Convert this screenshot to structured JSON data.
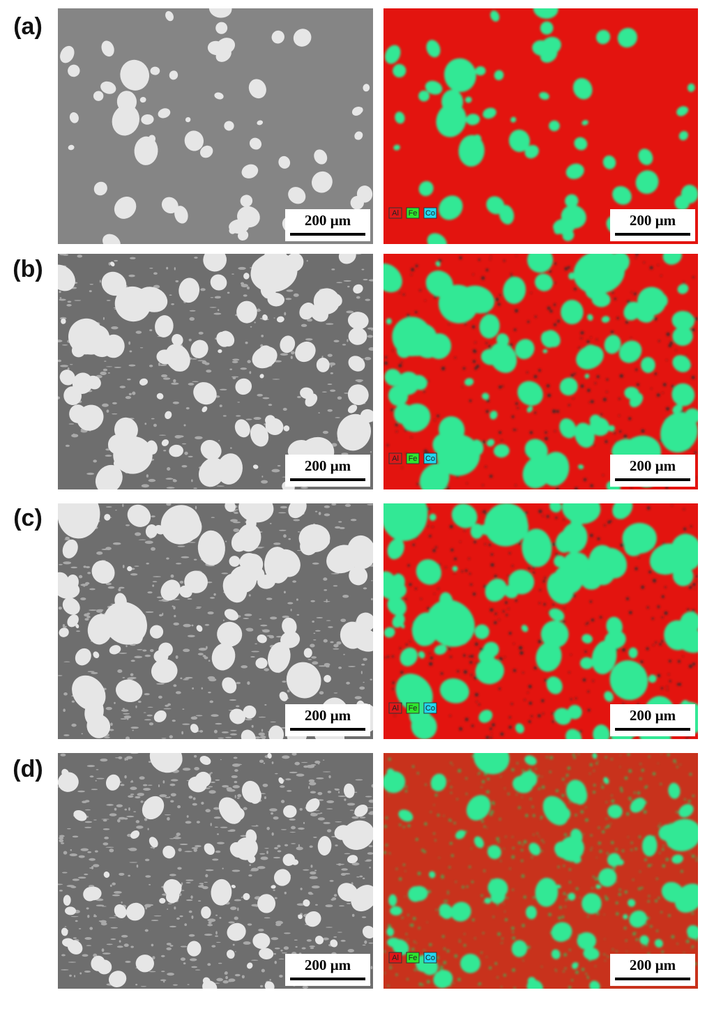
{
  "panels": [
    {
      "label": "(a)",
      "sem": {
        "scale_bar": "200 µm"
      },
      "eds": {
        "scale_bar": "200 µm",
        "legend": [
          "Al",
          "Fe",
          "Co"
        ]
      }
    },
    {
      "label": "(b)",
      "sem": {
        "scale_bar": "200 µm"
      },
      "eds": {
        "scale_bar": "200 µm",
        "legend": [
          "Al",
          "Fe",
          "Co"
        ]
      }
    },
    {
      "label": "(c)",
      "sem": {
        "scale_bar": "200 µm"
      },
      "eds": {
        "scale_bar": "200 µm",
        "legend": [
          "Al",
          "Fe",
          "Co"
        ]
      }
    },
    {
      "label": "(d)",
      "sem": {
        "scale_bar": "200 µm"
      },
      "eds": {
        "scale_bar": "200 µm",
        "legend": [
          "Al",
          "Fe",
          "Co"
        ]
      }
    }
  ]
}
